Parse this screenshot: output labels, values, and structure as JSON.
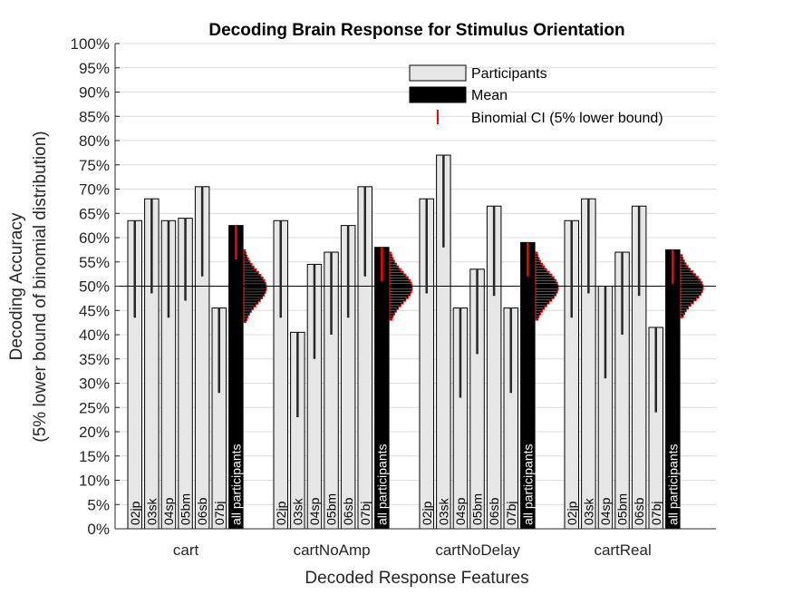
{
  "chart_data": {
    "type": "bar",
    "title": "Decoding Brain Response for Stimulus Orientation",
    "xlabel": "Decoded Response Features",
    "ylabel": [
      "Decoding Accuracy",
      "(5% lower bound of binomial distribution)"
    ],
    "ylim": [
      0,
      100
    ],
    "yticks": [
      "0%",
      "5%",
      "10%",
      "15%",
      "20%",
      "25%",
      "30%",
      "35%",
      "40%",
      "45%",
      "50%",
      "55%",
      "60%",
      "65%",
      "70%",
      "75%",
      "80%",
      "85%",
      "90%",
      "95%",
      "100%"
    ],
    "chance_level": 50,
    "grid": true,
    "legend_position": "top-right",
    "legend": [
      {
        "label": "Participants",
        "swatch": "participant"
      },
      {
        "label": "Mean",
        "swatch": "mean"
      },
      {
        "label": "Binomial CI (5% lower bound)",
        "swatch": "ci"
      }
    ],
    "colors": {
      "participant": "#e6e6e6",
      "mean": "#000000",
      "ci_participant": "#262626",
      "ci_mean": "#ff0000",
      "distribution": "#ff0000"
    },
    "categories": [
      "cart",
      "cartNoAmp",
      "cartNoDelay",
      "cartReal"
    ],
    "groups": [
      {
        "category": "cart",
        "bars": [
          {
            "label": "02jp",
            "value": 63.5,
            "ci_lower": 43.5
          },
          {
            "label": "03sk",
            "value": 68,
            "ci_lower": 48.5
          },
          {
            "label": "04sp",
            "value": 63.5,
            "ci_lower": 43.5
          },
          {
            "label": "05bm",
            "value": 64,
            "ci_lower": 47
          },
          {
            "label": "06sb",
            "value": 70.5,
            "ci_lower": 52
          },
          {
            "label": "07bj",
            "value": 45.5,
            "ci_lower": 28
          }
        ],
        "mean": {
          "label": "all participants",
          "value": 62.5,
          "ci_lower": 55.5,
          "dist_low": 42.5,
          "dist_high": 57.5
        }
      },
      {
        "category": "cartNoAmp",
        "bars": [
          {
            "label": "02jp",
            "value": 63.5,
            "ci_lower": 43.5
          },
          {
            "label": "03sk",
            "value": 40.5,
            "ci_lower": 23
          },
          {
            "label": "04sp",
            "value": 54.5,
            "ci_lower": 35
          },
          {
            "label": "05bm",
            "value": 57,
            "ci_lower": 40
          },
          {
            "label": "06sb",
            "value": 62.5,
            "ci_lower": 43.5
          },
          {
            "label": "07bj",
            "value": 70.5,
            "ci_lower": 52
          }
        ],
        "mean": {
          "label": "all participants",
          "value": 58,
          "ci_lower": 51,
          "dist_low": 43,
          "dist_high": 57
        }
      },
      {
        "category": "cartNoDelay",
        "bars": [
          {
            "label": "02jp",
            "value": 68,
            "ci_lower": 48.5
          },
          {
            "label": "03sk",
            "value": 77,
            "ci_lower": 58
          },
          {
            "label": "04sp",
            "value": 45.5,
            "ci_lower": 27
          },
          {
            "label": "05bm",
            "value": 53.5,
            "ci_lower": 36
          },
          {
            "label": "06sb",
            "value": 66.5,
            "ci_lower": 48
          },
          {
            "label": "07bj",
            "value": 45.5,
            "ci_lower": 28
          }
        ],
        "mean": {
          "label": "all participants",
          "value": 59,
          "ci_lower": 52,
          "dist_low": 43,
          "dist_high": 57
        }
      },
      {
        "category": "cartReal",
        "bars": [
          {
            "label": "02jp",
            "value": 63.5,
            "ci_lower": 43.5
          },
          {
            "label": "03sk",
            "value": 68,
            "ci_lower": 48.5
          },
          {
            "label": "04sp",
            "value": 50,
            "ci_lower": 31
          },
          {
            "label": "05bm",
            "value": 57,
            "ci_lower": 40
          },
          {
            "label": "06sb",
            "value": 66.5,
            "ci_lower": 48
          },
          {
            "label": "07bj",
            "value": 41.5,
            "ci_lower": 24
          }
        ],
        "mean": {
          "label": "all participants",
          "value": 57.5,
          "ci_lower": 50.5,
          "dist_low": 43.5,
          "dist_high": 56.5
        }
      }
    ]
  }
}
